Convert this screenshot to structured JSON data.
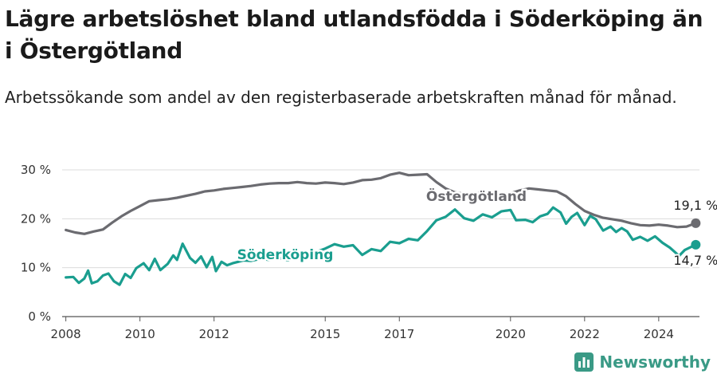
{
  "title": "Lägre arbetslöshet bland utlandsfödda i Söderköping än i Östergötland",
  "subtitle": "Arbetssökande som andel av den registerbaserade arbetskraften månad för månad.",
  "brand": {
    "name": "Newsworthy",
    "icon": "newsworthy-logo-icon"
  },
  "chart_data": {
    "type": "line",
    "title": "Lägre arbetslöshet bland utlandsfödda i Söderköping än i Östergötland",
    "subtitle": "Arbetssökande som andel av den registerbaserade arbetskraften månad för månad.",
    "xlabel": "",
    "ylabel": "",
    "xlim": [
      2007.9,
      2025.1
    ],
    "ylim": [
      0,
      30
    ],
    "grid": "horizontal",
    "x_ticks": [
      {
        "value": 2008,
        "label": "2008"
      },
      {
        "value": 2010,
        "label": "2010"
      },
      {
        "value": 2012,
        "label": "2012"
      },
      {
        "value": 2015,
        "label": "2015"
      },
      {
        "value": 2017,
        "label": "2017"
      },
      {
        "value": 2020,
        "label": "2020"
      },
      {
        "value": 2022,
        "label": "2022"
      },
      {
        "value": 2024,
        "label": "2024"
      }
    ],
    "y_ticks": [
      {
        "value": 0,
        "label": "0 %"
      },
      {
        "value": 10,
        "label": "10 %"
      },
      {
        "value": 20,
        "label": "20 %"
      },
      {
        "value": 30,
        "label": "30 %"
      }
    ],
    "series": [
      {
        "name": "Östergötland",
        "color": "#6b6b70",
        "end_label": "19,1 %",
        "points": [
          [
            2008.0,
            17.7
          ],
          [
            2008.25,
            17.2
          ],
          [
            2008.5,
            16.9
          ],
          [
            2008.75,
            17.4
          ],
          [
            2009.0,
            17.8
          ],
          [
            2009.25,
            19.2
          ],
          [
            2009.5,
            20.5
          ],
          [
            2009.75,
            21.6
          ],
          [
            2010.0,
            22.6
          ],
          [
            2010.25,
            23.6
          ],
          [
            2010.5,
            23.8
          ],
          [
            2010.75,
            24.0
          ],
          [
            2011.0,
            24.3
          ],
          [
            2011.25,
            24.7
          ],
          [
            2011.5,
            25.1
          ],
          [
            2011.75,
            25.6
          ],
          [
            2012.0,
            25.8
          ],
          [
            2012.25,
            26.1
          ],
          [
            2012.5,
            26.3
          ],
          [
            2012.75,
            26.5
          ],
          [
            2013.0,
            26.7
          ],
          [
            2013.25,
            27.0
          ],
          [
            2013.5,
            27.2
          ],
          [
            2013.75,
            27.3
          ],
          [
            2014.0,
            27.3
          ],
          [
            2014.25,
            27.5
          ],
          [
            2014.5,
            27.3
          ],
          [
            2014.75,
            27.2
          ],
          [
            2015.0,
            27.4
          ],
          [
            2015.25,
            27.3
          ],
          [
            2015.5,
            27.1
          ],
          [
            2015.75,
            27.4
          ],
          [
            2016.0,
            27.9
          ],
          [
            2016.25,
            28.0
          ],
          [
            2016.5,
            28.3
          ],
          [
            2016.75,
            29.0
          ],
          [
            2017.0,
            29.4
          ],
          [
            2017.25,
            28.9
          ],
          [
            2017.5,
            29.0
          ],
          [
            2017.75,
            29.1
          ],
          [
            2018.0,
            27.5
          ],
          [
            2018.25,
            26.2
          ],
          [
            2018.5,
            25.4
          ],
          [
            2018.75,
            25.1
          ],
          [
            2019.0,
            25.2
          ],
          [
            2019.25,
            25.3
          ],
          [
            2019.5,
            25.0
          ],
          [
            2019.75,
            25.0
          ],
          [
            2020.0,
            25.2
          ],
          [
            2020.25,
            25.8
          ],
          [
            2020.5,
            26.2
          ],
          [
            2020.75,
            26.0
          ],
          [
            2021.0,
            25.8
          ],
          [
            2021.25,
            25.6
          ],
          [
            2021.5,
            24.6
          ],
          [
            2021.75,
            23.0
          ],
          [
            2022.0,
            21.6
          ],
          [
            2022.25,
            20.8
          ],
          [
            2022.5,
            20.2
          ],
          [
            2022.75,
            19.9
          ],
          [
            2023.0,
            19.6
          ],
          [
            2023.25,
            19.1
          ],
          [
            2023.5,
            18.7
          ],
          [
            2023.75,
            18.6
          ],
          [
            2024.0,
            18.8
          ],
          [
            2024.25,
            18.6
          ],
          [
            2024.5,
            18.3
          ],
          [
            2024.75,
            18.4
          ],
          [
            2025.0,
            19.1
          ]
        ]
      },
      {
        "name": "Söderköping",
        "color": "#1a9e8f",
        "end_label": "14,7 %",
        "points": [
          [
            2008.0,
            8.0
          ],
          [
            2008.2,
            8.1
          ],
          [
            2008.35,
            6.9
          ],
          [
            2008.5,
            7.8
          ],
          [
            2008.6,
            9.4
          ],
          [
            2008.7,
            6.8
          ],
          [
            2008.85,
            7.2
          ],
          [
            2009.0,
            8.4
          ],
          [
            2009.15,
            8.8
          ],
          [
            2009.3,
            7.2
          ],
          [
            2009.45,
            6.5
          ],
          [
            2009.6,
            8.7
          ],
          [
            2009.75,
            7.9
          ],
          [
            2009.9,
            9.9
          ],
          [
            2010.1,
            10.9
          ],
          [
            2010.25,
            9.5
          ],
          [
            2010.4,
            11.8
          ],
          [
            2010.55,
            9.5
          ],
          [
            2010.75,
            10.8
          ],
          [
            2010.9,
            12.5
          ],
          [
            2011.0,
            11.6
          ],
          [
            2011.15,
            14.9
          ],
          [
            2011.35,
            12.0
          ],
          [
            2011.5,
            11.0
          ],
          [
            2011.65,
            12.3
          ],
          [
            2011.8,
            10.1
          ],
          [
            2011.95,
            12.2
          ],
          [
            2012.05,
            9.3
          ],
          [
            2012.2,
            11.2
          ],
          [
            2012.35,
            10.5
          ],
          [
            2012.5,
            10.9
          ],
          [
            2012.65,
            11.2
          ],
          [
            2012.8,
            11.5
          ],
          [
            2013.0,
            11.4
          ],
          [
            2013.25,
            11.8
          ],
          [
            2013.5,
            11.6
          ],
          [
            2013.75,
            12.0
          ],
          [
            2014.0,
            11.5
          ],
          [
            2014.25,
            12.3
          ],
          [
            2014.5,
            12.8
          ],
          [
            2014.75,
            13.2
          ],
          [
            2015.0,
            13.9
          ],
          [
            2015.25,
            14.8
          ],
          [
            2015.5,
            14.3
          ],
          [
            2015.75,
            14.6
          ],
          [
            2016.0,
            12.6
          ],
          [
            2016.25,
            13.8
          ],
          [
            2016.5,
            13.4
          ],
          [
            2016.75,
            15.3
          ],
          [
            2017.0,
            15.0
          ],
          [
            2017.25,
            15.9
          ],
          [
            2017.5,
            15.6
          ],
          [
            2017.75,
            17.5
          ],
          [
            2018.0,
            19.7
          ],
          [
            2018.25,
            20.4
          ],
          [
            2018.5,
            21.9
          ],
          [
            2018.75,
            20.1
          ],
          [
            2019.0,
            19.6
          ],
          [
            2019.25,
            20.9
          ],
          [
            2019.5,
            20.3
          ],
          [
            2019.75,
            21.5
          ],
          [
            2020.0,
            21.8
          ],
          [
            2020.15,
            19.7
          ],
          [
            2020.4,
            19.8
          ],
          [
            2020.6,
            19.3
          ],
          [
            2020.8,
            20.5
          ],
          [
            2021.0,
            21.0
          ],
          [
            2021.15,
            22.3
          ],
          [
            2021.35,
            21.3
          ],
          [
            2021.5,
            19.0
          ],
          [
            2021.65,
            20.4
          ],
          [
            2021.8,
            21.2
          ],
          [
            2022.0,
            18.7
          ],
          [
            2022.15,
            20.6
          ],
          [
            2022.3,
            19.9
          ],
          [
            2022.5,
            17.6
          ],
          [
            2022.7,
            18.4
          ],
          [
            2022.85,
            17.3
          ],
          [
            2023.0,
            18.1
          ],
          [
            2023.15,
            17.4
          ],
          [
            2023.3,
            15.7
          ],
          [
            2023.5,
            16.3
          ],
          [
            2023.7,
            15.5
          ],
          [
            2023.9,
            16.4
          ],
          [
            2024.1,
            15.1
          ],
          [
            2024.3,
            14.1
          ],
          [
            2024.45,
            13.1
          ],
          [
            2024.55,
            12.4
          ],
          [
            2024.7,
            13.6
          ],
          [
            2025.0,
            14.7
          ]
        ]
      }
    ]
  }
}
